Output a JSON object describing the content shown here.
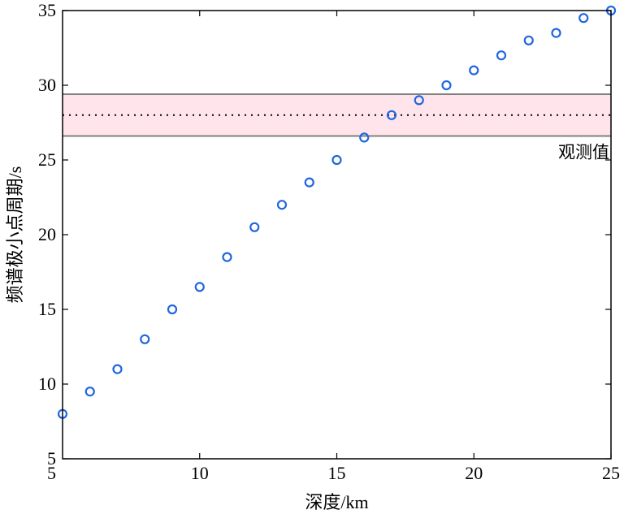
{
  "chart_data": {
    "type": "scatter",
    "title": "",
    "xlabel": "深度/km",
    "ylabel": "频谱极小点周期/s",
    "xlim": [
      5,
      25
    ],
    "ylim": [
      5,
      35
    ],
    "xticks": [
      10,
      15,
      20,
      25
    ],
    "yticks": [
      5,
      10,
      15,
      20,
      25,
      30,
      35
    ],
    "xtick_labels": [
      "10",
      "15",
      "20",
      "25"
    ],
    "ytick_labels": [
      "5",
      "10",
      "15",
      "20",
      "25",
      "30",
      "35"
    ],
    "corner_label": "5",
    "grid": false,
    "marker": "circle-open",
    "marker_color": "#1f66e0",
    "series": [
      {
        "x": [
          5,
          6,
          7,
          8,
          9,
          10,
          11,
          12,
          13,
          14,
          15,
          16,
          17,
          18,
          19,
          20,
          21,
          22,
          23,
          24,
          25
        ],
        "y": [
          8,
          9.5,
          11,
          13,
          15,
          16.5,
          18.5,
          20.5,
          22,
          23.5,
          25,
          26.5,
          28,
          29,
          30,
          31,
          32,
          33,
          33.5,
          34.5,
          35
        ]
      }
    ],
    "observed": {
      "label": "观测值",
      "value": 28,
      "lower": 26.6,
      "upper": 29.4,
      "band_color": "#ffe4ec",
      "bound_color": "#808080",
      "line_style": "dotted"
    }
  }
}
